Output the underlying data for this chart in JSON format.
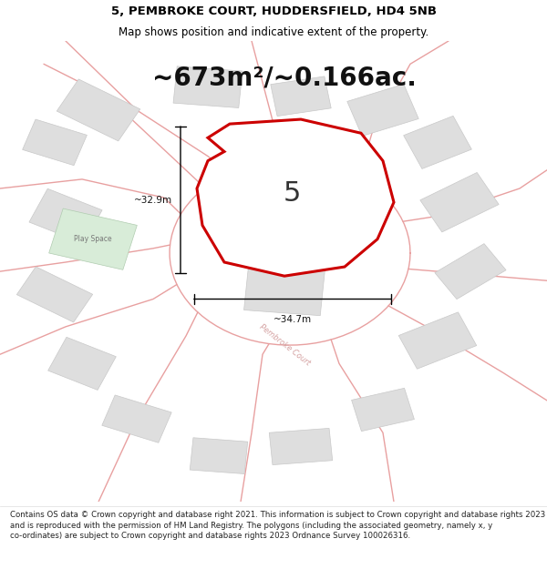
{
  "title_line1": "5, PEMBROKE COURT, HUDDERSFIELD, HD4 5NB",
  "title_line2": "Map shows position and indicative extent of the property.",
  "area_text": "~673m²/~0.166ac.",
  "dim_width": "~34.7m",
  "dim_height": "~32.9m",
  "plot_label": "5",
  "play_space_label": "Play Space",
  "road_label1": "Pembroke Court",
  "road_label2": "Pembroke Court",
  "footer_text": "Contains OS data © Crown copyright and database right 2021. This information is subject to Crown copyright and database rights 2023 and is reproduced with the permission of HM Land Registry. The polygons (including the associated geometry, namely x, y co-ordinates) are subject to Crown copyright and database rights 2023 Ordnance Survey 100026316.",
  "background_color": "#ffffff",
  "map_bg": "#f5f5f5",
  "property_fill": "#ffffff",
  "property_edge": "#cc0000",
  "road_color": "#e8a0a0",
  "building_fill": "#dedede",
  "building_edge": "#c8c8c8",
  "play_space_fill": "#d8ecd8",
  "play_space_edge": "#b0ccb0",
  "title_fontsize": 9.5,
  "subtitle_fontsize": 8.5,
  "area_fontsize": 20,
  "label_fontsize": 22,
  "footer_fontsize": 6.2
}
